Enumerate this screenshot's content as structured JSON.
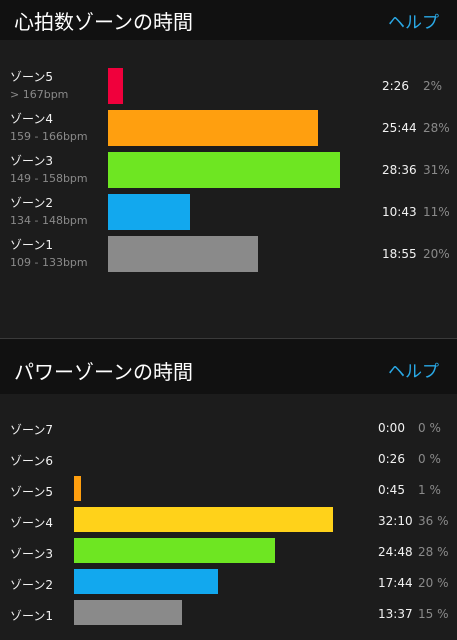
{
  "heart_rate": {
    "title": "心拍数ゾーンの時間",
    "help_label": "ヘルプ",
    "zones": [
      {
        "name": "ゾーン5",
        "range": "> 167bpm",
        "time": "2:26",
        "percent": "2%",
        "share": 2,
        "color": "#f0003c"
      },
      {
        "name": "ゾーン4",
        "range": "159 - 166bpm",
        "time": "25:44",
        "percent": "28%",
        "share": 28,
        "color": "#ff9f0f"
      },
      {
        "name": "ゾーン3",
        "range": "149 - 158bpm",
        "time": "28:36",
        "percent": "31%",
        "share": 31,
        "color": "#6ee622"
      },
      {
        "name": "ゾーン2",
        "range": "134 - 148bpm",
        "time": "10:43",
        "percent": "11%",
        "share": 11,
        "color": "#12a8ee"
      },
      {
        "name": "ゾーン1",
        "range": "109 - 133bpm",
        "time": "18:55",
        "percent": "20%",
        "share": 20,
        "color": "#8a8a8a"
      }
    ]
  },
  "power": {
    "title": "パワーゾーンの時間",
    "help_label": "ヘルプ",
    "zones": [
      {
        "name": "ゾーン7",
        "time": "0:00",
        "percent": "0 %",
        "share": 0,
        "color": "#f0003c"
      },
      {
        "name": "ゾーン6",
        "time": "0:26",
        "percent": "0 %",
        "share": 0,
        "color": "#f0003c"
      },
      {
        "name": "ゾーン5",
        "time": "0:45",
        "percent": "1 %",
        "share": 1,
        "color": "#ff9f0f"
      },
      {
        "name": "ゾーン4",
        "time": "32:10",
        "percent": "36 %",
        "share": 36,
        "color": "#ffd21a"
      },
      {
        "name": "ゾーン3",
        "time": "24:48",
        "percent": "28 %",
        "share": 28,
        "color": "#6ee622"
      },
      {
        "name": "ゾーン2",
        "time": "17:44",
        "percent": "20 %",
        "share": 20,
        "color": "#12a8ee"
      },
      {
        "name": "ゾーン1",
        "time": "13:37",
        "percent": "15 %",
        "share": 15,
        "color": "#8a8a8a"
      }
    ]
  }
}
